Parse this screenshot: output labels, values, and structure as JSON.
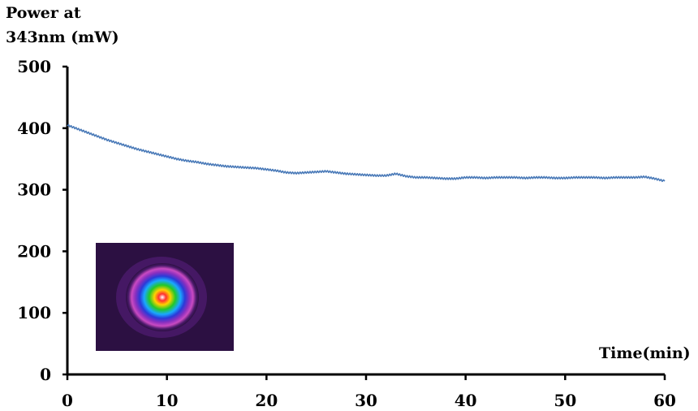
{
  "chart_data": {
    "type": "line",
    "title": "",
    "ylabel_line1": "Power at",
    "ylabel_line2": "343nm (mW)",
    "xlabel": "Time(min)",
    "xlim": [
      0,
      60
    ],
    "ylim": [
      0,
      500
    ],
    "x_ticks": [
      "0",
      "10",
      "20",
      "30",
      "40",
      "50",
      "60"
    ],
    "y_ticks": [
      "0",
      "100",
      "200",
      "300",
      "400",
      "500"
    ],
    "grid": false,
    "legend": "none",
    "series": [
      {
        "color": "#4a7ab8",
        "x": [
          0,
          1,
          2,
          3,
          4,
          5,
          6,
          7,
          8,
          9,
          10,
          11,
          12,
          13,
          14,
          15,
          16,
          17,
          18,
          19,
          20,
          21,
          22,
          23,
          24,
          25,
          26,
          27,
          28,
          29,
          30,
          31,
          32,
          33,
          34,
          35,
          36,
          37,
          38,
          39,
          40,
          41,
          42,
          43,
          44,
          45,
          46,
          47,
          48,
          49,
          50,
          51,
          52,
          53,
          54,
          55,
          56,
          57,
          58,
          59,
          60
        ],
        "y": [
          405,
          399,
          393,
          387,
          381,
          376,
          371,
          366,
          362,
          358,
          354,
          350,
          347,
          345,
          342,
          340,
          338,
          337,
          336,
          335,
          333,
          331,
          328,
          327,
          328,
          329,
          330,
          328,
          326,
          325,
          324,
          323,
          323,
          326,
          322,
          320,
          320,
          319,
          318,
          318,
          320,
          320,
          319,
          320,
          320,
          320,
          319,
          320,
          320,
          319,
          319,
          320,
          320,
          320,
          319,
          320,
          320,
          320,
          321,
          318,
          314
        ]
      }
    ]
  },
  "inset": {
    "icon": "beam-profile-image",
    "colors": [
      "#ffffff",
      "#ff3030",
      "#ffd200",
      "#22c828",
      "#1aa8ff",
      "#2a3ad8",
      "#8a2fbf",
      "#c94ac2",
      "#4a1a6a",
      "#2c1042"
    ]
  }
}
